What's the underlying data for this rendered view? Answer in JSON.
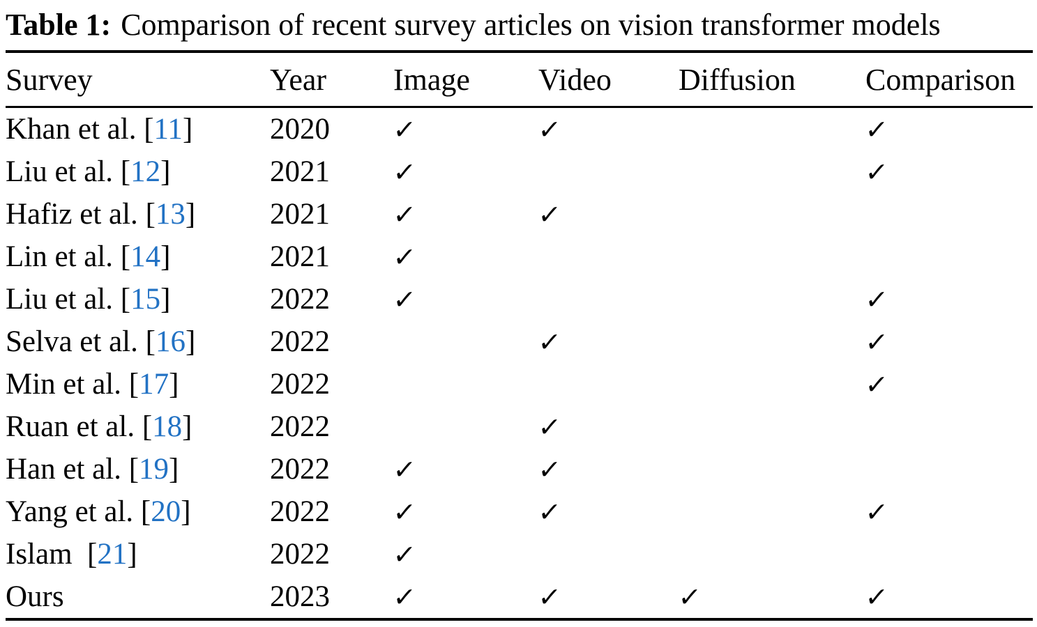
{
  "caption": {
    "label": "Table 1:",
    "text": "Comparison of recent survey articles on vision transformer models"
  },
  "colors": {
    "citation_link": "#2272c4",
    "text": "#000000",
    "background": "#ffffff"
  },
  "table": {
    "columns": [
      "Survey",
      "Year",
      "Image",
      "Video",
      "Diffusion",
      "Comparison"
    ],
    "check_glyph": "✓",
    "rows": [
      {
        "survey": "Khan et al.",
        "cite": "11",
        "year": "2020",
        "image": true,
        "video": true,
        "diffusion": false,
        "comparison": true
      },
      {
        "survey": "Liu et al.",
        "cite": "12",
        "year": "2021",
        "image": true,
        "video": false,
        "diffusion": false,
        "comparison": true
      },
      {
        "survey": "Hafiz et al.",
        "cite": "13",
        "year": "2021",
        "image": true,
        "video": true,
        "diffusion": false,
        "comparison": false
      },
      {
        "survey": "Lin et al.",
        "cite": "14",
        "year": "2021",
        "image": true,
        "video": false,
        "diffusion": false,
        "comparison": false
      },
      {
        "survey": "Liu et al.",
        "cite": "15",
        "year": "2022",
        "image": true,
        "video": false,
        "diffusion": false,
        "comparison": true
      },
      {
        "survey": "Selva et al.",
        "cite": "16",
        "year": "2022",
        "image": false,
        "video": true,
        "diffusion": false,
        "comparison": true
      },
      {
        "survey": "Min et al.",
        "cite": "17",
        "year": "2022",
        "image": false,
        "video": false,
        "diffusion": false,
        "comparison": true
      },
      {
        "survey": "Ruan et al.",
        "cite": "18",
        "year": "2022",
        "image": false,
        "video": true,
        "diffusion": false,
        "comparison": false
      },
      {
        "survey": "Han et al.",
        "cite": "19",
        "year": "2022",
        "image": true,
        "video": true,
        "diffusion": false,
        "comparison": false
      },
      {
        "survey": "Yang et al.",
        "cite": "20",
        "year": "2022",
        "image": true,
        "video": true,
        "diffusion": false,
        "comparison": true
      },
      {
        "survey": "Islam ",
        "cite": "21",
        "year": "2022",
        "image": true,
        "video": false,
        "diffusion": false,
        "comparison": false
      },
      {
        "survey": "Ours",
        "cite": null,
        "year": "2023",
        "image": true,
        "video": true,
        "diffusion": true,
        "comparison": true
      }
    ]
  }
}
